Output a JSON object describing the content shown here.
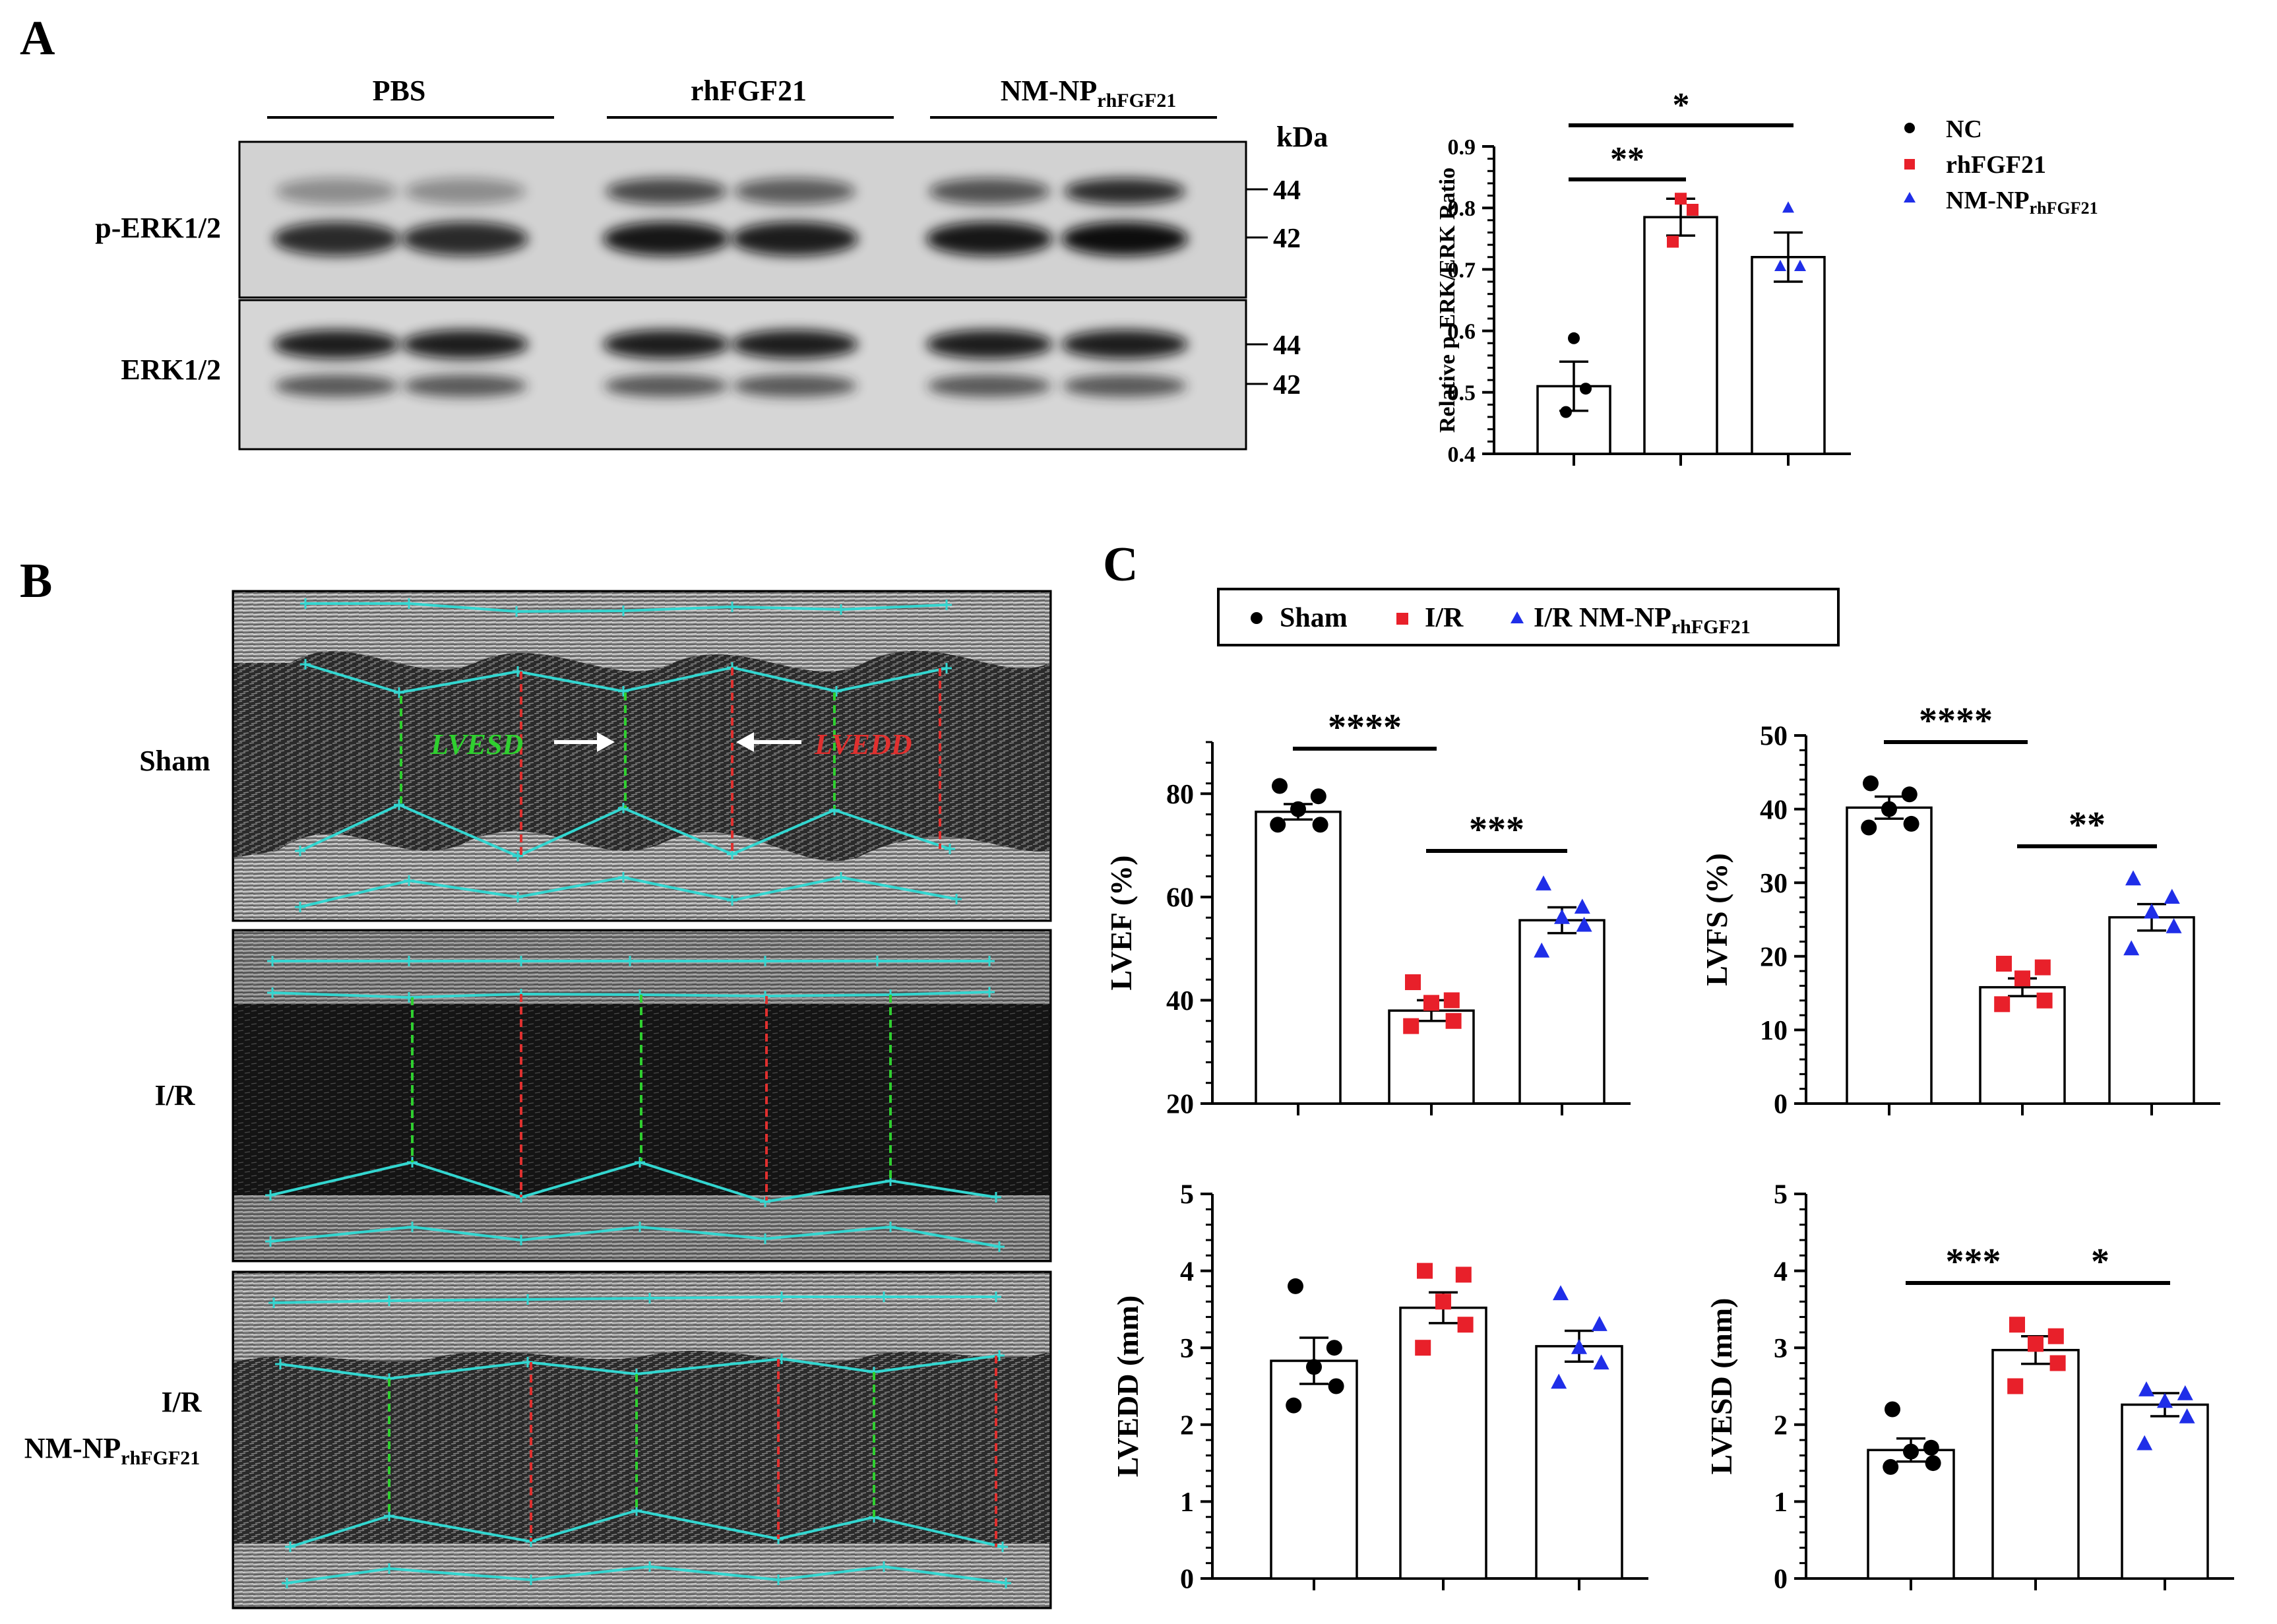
{
  "panels": {
    "a": "A",
    "b": "B",
    "c": "C"
  },
  "western_blot": {
    "groups": [
      "PBS",
      "rhFGF21",
      "NM-NP"
    ],
    "group3_sub": "rhFGF21",
    "rows": [
      "p-ERK1/2",
      "ERK1/2"
    ],
    "kda_header": "kDa",
    "markers": [
      "44",
      "42"
    ]
  },
  "echo": {
    "rows": [
      "Sham",
      "I/R",
      "I/R"
    ],
    "row3_second_line": "NM-NP",
    "row3_sub": "rhFGF21",
    "annotation_lvesd": "LVESD",
    "annotation_lvedd": "LVEDD",
    "trace_color": "#33d6d0",
    "systolic_color": "#2fd02f",
    "diastolic_color": "#e0302f"
  },
  "legend_c": {
    "sham": "Sham",
    "ir": "I/R",
    "treated": "I/R NM-NP",
    "treated_sub": "rhFGF21"
  },
  "chart_data": [
    {
      "id": "ratio",
      "type": "bar",
      "ylabel": "Relative p-ERK/ERK Ratio",
      "ylim": [
        0.4,
        0.9
      ],
      "yticks": [
        "0.4",
        "0.5",
        "0.6",
        "0.7",
        "0.8",
        "0.9"
      ],
      "categories": [
        "NC",
        "rhFGF21",
        "NM-NP rhFGF21"
      ],
      "legend": [
        "NC",
        "rhFGF21",
        "NM-NP"
      ],
      "legend_sub": "rhFGF21",
      "means": [
        0.51,
        0.785,
        0.72
      ],
      "sem": [
        0.04,
        0.03,
        0.04
      ],
      "points": [
        [
          0.588,
          0.506,
          0.468
        ],
        [
          0.815,
          0.797,
          0.745
        ],
        [
          0.8,
          0.705,
          0.705
        ]
      ],
      "markers": [
        "circle",
        "square",
        "triangle"
      ],
      "colors": [
        "#000000",
        "#e8202a",
        "#1f2ee8"
      ],
      "significance": [
        {
          "from": 0,
          "to": 1,
          "label": "**"
        },
        {
          "from": 0,
          "to": 2,
          "label": "*"
        }
      ]
    },
    {
      "id": "lvef",
      "type": "bar",
      "ylabel": "LVEF (%)",
      "ylim": [
        20,
        90
      ],
      "yticks": [
        "20",
        "40",
        "60",
        "80"
      ],
      "categories": [
        "Sham",
        "I/R",
        "I/R NM-NP rhFGF21"
      ],
      "means": [
        76.5,
        38.0,
        55.5
      ],
      "sem": [
        1.5,
        2.0,
        2.5
      ],
      "points": [
        [
          81.5,
          79.5,
          77.0,
          74.0,
          74.0
        ],
        [
          43.5,
          40.0,
          39.5,
          36.0,
          35.0
        ],
        [
          62.5,
          58.0,
          56.0,
          54.5,
          49.5
        ]
      ],
      "markers": [
        "circle",
        "square",
        "triangle"
      ],
      "colors": [
        "#000000",
        "#e8202a",
        "#1f2ee8"
      ],
      "significance": [
        {
          "from": 0,
          "to": 1,
          "label": "****"
        },
        {
          "from": 1,
          "to": 2,
          "label": "***"
        }
      ]
    },
    {
      "id": "lvfs",
      "type": "bar",
      "ylabel": "LVFS (%)",
      "ylim": [
        0,
        50
      ],
      "yticks": [
        "0",
        "10",
        "20",
        "30",
        "40",
        "50"
      ],
      "categories": [
        "Sham",
        "I/R",
        "I/R NM-NP rhFGF21"
      ],
      "means": [
        40.2,
        15.8,
        25.3
      ],
      "sem": [
        1.5,
        1.2,
        1.8
      ],
      "points": [
        [
          43.5,
          42.0,
          40.0,
          38.0,
          37.5
        ],
        [
          19.0,
          18.5,
          17.0,
          14.0,
          13.5
        ],
        [
          30.5,
          28.0,
          26.0,
          24.0,
          21.0
        ]
      ],
      "markers": [
        "circle",
        "square",
        "triangle"
      ],
      "colors": [
        "#000000",
        "#e8202a",
        "#1f2ee8"
      ],
      "significance": [
        {
          "from": 0,
          "to": 1,
          "label": "****"
        },
        {
          "from": 1,
          "to": 2,
          "label": "**"
        }
      ]
    },
    {
      "id": "lvedd",
      "type": "bar",
      "ylabel": "LVEDD (mm)",
      "ylim": [
        0,
        5
      ],
      "yticks": [
        "0",
        "1",
        "2",
        "3",
        "4",
        "5"
      ],
      "categories": [
        "Sham",
        "I/R",
        "I/R NM-NP rhFGF21"
      ],
      "means": [
        2.83,
        3.52,
        3.02
      ],
      "sem": [
        0.3,
        0.2,
        0.2
      ],
      "points": [
        [
          3.8,
          3.0,
          2.75,
          2.5,
          2.25
        ],
        [
          4.0,
          3.95,
          3.6,
          3.3,
          3.0
        ],
        [
          3.7,
          3.3,
          3.0,
          2.8,
          2.55
        ]
      ],
      "markers": [
        "circle",
        "square",
        "triangle"
      ],
      "colors": [
        "#000000",
        "#e8202a",
        "#1f2ee8"
      ],
      "significance": []
    },
    {
      "id": "lvesd",
      "type": "bar",
      "ylabel": "LVESD (mm)",
      "ylim": [
        0,
        5
      ],
      "yticks": [
        "0",
        "1",
        "2",
        "3",
        "4",
        "5"
      ],
      "categories": [
        "Sham",
        "I/R",
        "I/R NM-NP rhFGF21"
      ],
      "means": [
        1.67,
        2.97,
        2.26
      ],
      "sem": [
        0.15,
        0.18,
        0.15
      ],
      "points": [
        [
          2.2,
          1.7,
          1.65,
          1.5,
          1.45
        ],
        [
          3.3,
          3.15,
          3.05,
          2.8,
          2.5
        ],
        [
          2.45,
          2.4,
          2.3,
          2.1,
          1.75
        ]
      ],
      "markers": [
        "circle",
        "square",
        "triangle"
      ],
      "colors": [
        "#000000",
        "#e8202a",
        "#1f2ee8"
      ],
      "significance": [
        {
          "from": 0,
          "to": 1,
          "label": "***"
        },
        {
          "from": 1,
          "to": 2,
          "label": "*"
        }
      ]
    }
  ]
}
